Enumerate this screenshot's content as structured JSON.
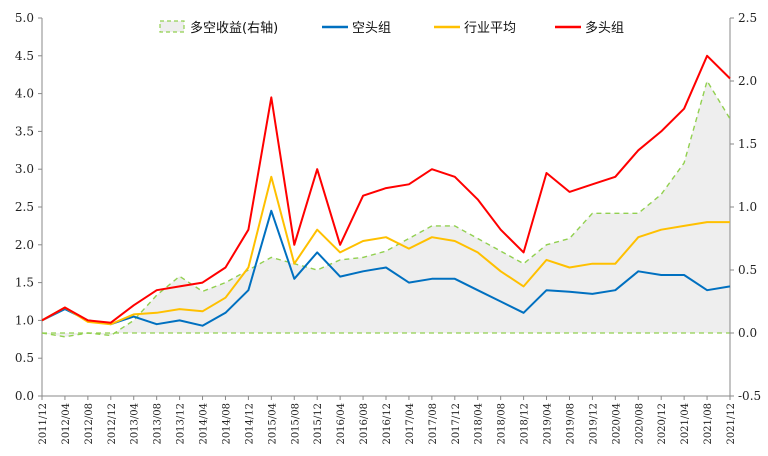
{
  "chart_data": {
    "type": "line",
    "legend_position": "top-center",
    "grid": false,
    "left_axis": {
      "ylim": [
        0,
        5
      ],
      "ticks": [
        "0.0",
        "0.5",
        "1.0",
        "1.5",
        "2.0",
        "2.5",
        "3.0",
        "3.5",
        "4.0",
        "4.5",
        "5.0"
      ]
    },
    "right_axis": {
      "ylim": [
        -0.5,
        2.5
      ],
      "ticks": [
        "-0.5",
        "0.0",
        "0.5",
        "1.0",
        "1.5",
        "2.0",
        "2.5"
      ]
    },
    "x_tick_labels": [
      "2011/12",
      "2012/04",
      "2012/08",
      "2012/12",
      "2013/04",
      "2013/08",
      "2013/12",
      "2014/04",
      "2014/08",
      "2014/12",
      "2015/04",
      "2015/08",
      "2015/12",
      "2016/04",
      "2016/08",
      "2016/12",
      "2017/04",
      "2017/08",
      "2017/12",
      "2018/04",
      "2018/08",
      "2018/12",
      "2019/04",
      "2019/08",
      "2019/12",
      "2020/04",
      "2020/08",
      "2020/12",
      "2021/04",
      "2021/08",
      "2021/12"
    ],
    "series": [
      {
        "name": "多空收益(右轴)",
        "axis": "right",
        "color": "#92d050",
        "style": "dashed-area",
        "x": [
          "2011/12",
          "2012/04",
          "2012/08",
          "2012/12",
          "2013/04",
          "2013/08",
          "2013/12",
          "2014/04",
          "2014/08",
          "2014/12",
          "2015/04",
          "2015/08",
          "2015/12",
          "2016/04",
          "2016/08",
          "2016/12",
          "2017/04",
          "2017/08",
          "2017/12",
          "2018/04",
          "2018/08",
          "2018/12",
          "2019/04",
          "2019/08",
          "2019/12",
          "2020/04",
          "2020/08",
          "2020/12",
          "2021/04",
          "2021/08",
          "2021/12"
        ],
        "values": [
          0.0,
          -0.03,
          0.0,
          -0.02,
          0.1,
          0.3,
          0.45,
          0.33,
          0.4,
          0.5,
          0.6,
          0.55,
          0.5,
          0.58,
          0.6,
          0.65,
          0.75,
          0.85,
          0.85,
          0.75,
          0.65,
          0.55,
          0.7,
          0.75,
          0.95,
          0.95,
          0.95,
          1.1,
          1.35,
          2.0,
          1.7
        ]
      },
      {
        "name": "空头组",
        "axis": "left",
        "color": "#0070c0",
        "x": [
          "2011/12",
          "2012/04",
          "2012/08",
          "2012/12",
          "2013/04",
          "2013/08",
          "2013/12",
          "2014/04",
          "2014/08",
          "2014/12",
          "2015/04",
          "2015/08",
          "2015/12",
          "2016/04",
          "2016/08",
          "2016/12",
          "2017/04",
          "2017/08",
          "2017/12",
          "2018/04",
          "2018/08",
          "2018/12",
          "2019/04",
          "2019/08",
          "2019/12",
          "2020/04",
          "2020/08",
          "2020/12",
          "2021/04",
          "2021/08",
          "2021/12"
        ],
        "values": [
          1.0,
          1.15,
          1.0,
          0.95,
          1.05,
          0.95,
          1.0,
          0.93,
          1.1,
          1.4,
          2.45,
          1.55,
          1.9,
          1.58,
          1.65,
          1.7,
          1.5,
          1.55,
          1.55,
          1.4,
          1.25,
          1.1,
          1.4,
          1.38,
          1.35,
          1.4,
          1.65,
          1.6,
          1.6,
          1.4,
          1.45
        ]
      },
      {
        "name": "行业平均",
        "axis": "left",
        "color": "#ffc000",
        "x": [
          "2011/12",
          "2012/04",
          "2012/08",
          "2012/12",
          "2013/04",
          "2013/08",
          "2013/12",
          "2014/04",
          "2014/08",
          "2014/12",
          "2015/04",
          "2015/08",
          "2015/12",
          "2016/04",
          "2016/08",
          "2016/12",
          "2017/04",
          "2017/08",
          "2017/12",
          "2018/04",
          "2018/08",
          "2018/12",
          "2019/04",
          "2019/08",
          "2019/12",
          "2020/04",
          "2020/08",
          "2020/12",
          "2021/04",
          "2021/08",
          "2021/12"
        ],
        "values": [
          1.0,
          1.17,
          0.98,
          0.95,
          1.08,
          1.1,
          1.15,
          1.12,
          1.3,
          1.7,
          2.9,
          1.75,
          2.2,
          1.9,
          2.05,
          2.1,
          1.95,
          2.1,
          2.05,
          1.9,
          1.65,
          1.45,
          1.8,
          1.7,
          1.75,
          1.75,
          2.1,
          2.2,
          2.25,
          2.3,
          2.3
        ]
      },
      {
        "name": "多头组",
        "axis": "left",
        "color": "#ff0000",
        "x": [
          "2011/12",
          "2012/04",
          "2012/08",
          "2012/12",
          "2013/04",
          "2013/08",
          "2013/12",
          "2014/04",
          "2014/08",
          "2014/12",
          "2015/04",
          "2015/08",
          "2015/12",
          "2016/04",
          "2016/08",
          "2016/12",
          "2017/04",
          "2017/08",
          "2017/12",
          "2018/04",
          "2018/08",
          "2018/12",
          "2019/04",
          "2019/08",
          "2019/12",
          "2020/04",
          "2020/08",
          "2020/12",
          "2021/04",
          "2021/08",
          "2021/12"
        ],
        "values": [
          1.0,
          1.17,
          1.0,
          0.97,
          1.2,
          1.4,
          1.45,
          1.5,
          1.7,
          2.2,
          3.95,
          2.0,
          3.0,
          2.0,
          2.65,
          2.75,
          2.8,
          3.0,
          2.9,
          2.6,
          2.2,
          1.9,
          2.95,
          2.7,
          2.8,
          2.9,
          3.25,
          3.5,
          3.8,
          4.5,
          4.2
        ]
      }
    ]
  }
}
